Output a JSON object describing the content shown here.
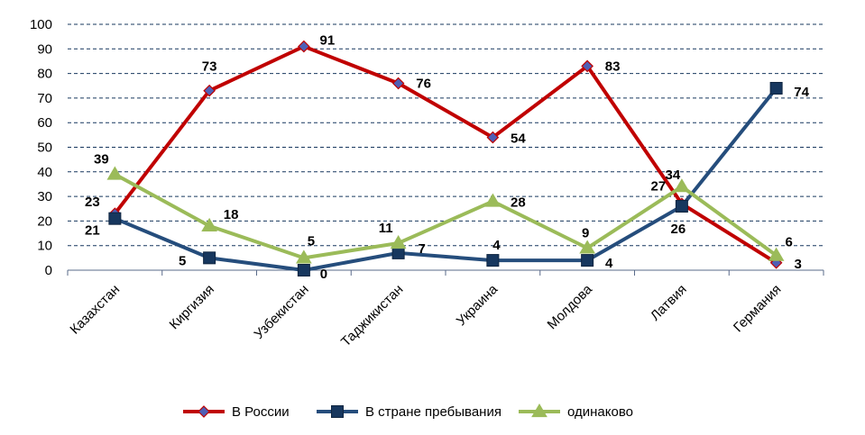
{
  "chart_data": {
    "type": "line",
    "categories": [
      "Казахстан",
      "Киргизия",
      "Узбекистан",
      "Таджикистан",
      "Украина",
      "Молдова",
      "Латвия",
      "Германия"
    ],
    "ylim": [
      0,
      100
    ],
    "yticks": [
      0,
      10,
      20,
      30,
      40,
      50,
      60,
      70,
      80,
      90,
      100
    ],
    "grid": "horizontal dashed",
    "legend_position": "bottom",
    "series": [
      {
        "name": "В России",
        "color": "#C00000",
        "marker": "diamond",
        "marker_color": "#4F5FB5",
        "values": [
          23,
          73,
          91,
          76,
          54,
          83,
          27,
          3
        ]
      },
      {
        "name": "В стране пребывания",
        "color": "#254D7C",
        "marker": "square",
        "marker_color": "#17375E",
        "values": [
          21,
          5,
          0,
          7,
          4,
          4,
          26,
          74
        ]
      },
      {
        "name": "одинаково",
        "color": "#9BBB59",
        "marker": "triangle",
        "marker_color": "#9BBB59",
        "values": [
          39,
          18,
          5,
          11,
          28,
          9,
          34,
          6
        ]
      }
    ]
  }
}
